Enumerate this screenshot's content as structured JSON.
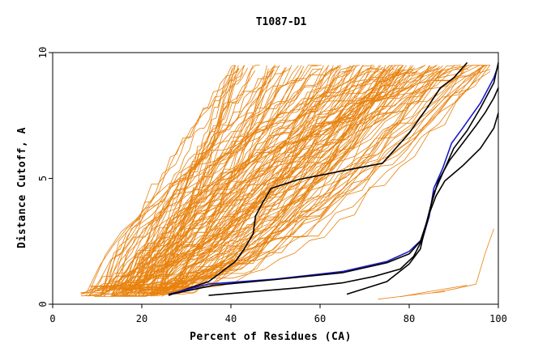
{
  "chart_data": {
    "type": "line",
    "title": "T1087-D1",
    "xlabel": "Percent of Residues (CA)",
    "ylabel": "Distance Cutoff, A",
    "xlim": [
      0,
      100
    ],
    "ylim": [
      0,
      10
    ],
    "x_ticks": [
      "0",
      "20",
      "40",
      "60",
      "80",
      "100"
    ],
    "y_ticks": [
      "0",
      "5",
      "10"
    ],
    "grid": false,
    "legend": "none",
    "colors": {
      "background_models": "#e8820e",
      "highlight_black": "#000000",
      "highlight_blue": "#1a1acc",
      "axes": "#000000"
    },
    "background_models_count": 140,
    "highlight_series": [
      {
        "color": "#000000",
        "points": [
          [
            26,
            0.35
          ],
          [
            30,
            0.6
          ],
          [
            35,
            0.9
          ],
          [
            38,
            1.3
          ],
          [
            41,
            1.7
          ],
          [
            43,
            2.2
          ],
          [
            45,
            2.8
          ],
          [
            45.5,
            3.5
          ],
          [
            47,
            4.0
          ],
          [
            49,
            4.6
          ],
          [
            55,
            4.95
          ],
          [
            65,
            5.3
          ],
          [
            74,
            5.6
          ],
          [
            80,
            6.8
          ],
          [
            84,
            7.8
          ],
          [
            87,
            8.6
          ],
          [
            90,
            9.0
          ],
          [
            93,
            9.6
          ]
        ]
      },
      {
        "color": "#1a1acc",
        "points": [
          [
            26,
            0.4
          ],
          [
            35,
            0.8
          ],
          [
            50,
            1.0
          ],
          [
            65,
            1.3
          ],
          [
            75,
            1.7
          ],
          [
            80,
            2.1
          ],
          [
            83,
            2.6
          ],
          [
            84.5,
            3.5
          ],
          [
            85.5,
            4.6
          ],
          [
            87.5,
            5.4
          ],
          [
            89.5,
            6.4
          ],
          [
            92,
            7.0
          ],
          [
            96,
            8.0
          ],
          [
            99,
            9.0
          ],
          [
            100,
            9.5
          ]
        ]
      },
      {
        "color": "#000000",
        "points": [
          [
            26,
            0.38
          ],
          [
            36,
            0.75
          ],
          [
            50,
            0.98
          ],
          [
            65,
            1.25
          ],
          [
            75,
            1.65
          ],
          [
            80,
            2.0
          ],
          [
            82.5,
            2.5
          ],
          [
            84,
            3.3
          ],
          [
            85.5,
            4.4
          ],
          [
            87.5,
            5.2
          ],
          [
            90,
            6.2
          ],
          [
            93,
            6.9
          ],
          [
            96,
            7.8
          ],
          [
            99,
            8.8
          ],
          [
            100,
            9.6
          ]
        ]
      },
      {
        "color": "#000000",
        "points": [
          [
            35,
            0.35
          ],
          [
            45,
            0.5
          ],
          [
            55,
            0.65
          ],
          [
            65,
            0.85
          ],
          [
            72,
            1.1
          ],
          [
            78,
            1.4
          ],
          [
            81,
            1.9
          ],
          [
            83,
            2.6
          ],
          [
            84.5,
            3.6
          ],
          [
            86,
            4.3
          ],
          [
            88,
            4.9
          ],
          [
            92,
            5.5
          ],
          [
            96,
            6.2
          ],
          [
            99,
            7.0
          ],
          [
            100,
            7.6
          ]
        ]
      },
      {
        "color": "#000000",
        "points": [
          [
            66,
            0.4
          ],
          [
            75,
            0.9
          ],
          [
            80,
            1.6
          ],
          [
            82.5,
            2.2
          ],
          [
            83.5,
            3.0
          ],
          [
            85,
            4.0
          ],
          [
            86.5,
            4.9
          ],
          [
            89,
            5.7
          ],
          [
            92,
            6.4
          ],
          [
            95,
            7.1
          ],
          [
            97,
            7.6
          ],
          [
            99,
            8.2
          ],
          [
            100,
            8.6
          ]
        ]
      }
    ]
  }
}
